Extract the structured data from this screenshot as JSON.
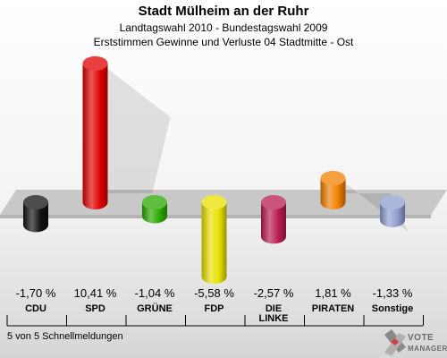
{
  "header": {
    "title": "Stadt Mülheim an der Ruhr",
    "subtitle": "Landtagswahl 2010 - Bundestagswahl 2009",
    "subtitle2": "Erststimmen Gewinne und Verluste 04 Stadtmitte - Ost"
  },
  "chart_data": {
    "type": "bar",
    "title": "Stadt Mülheim an der Ruhr",
    "subtitle": "Landtagswahl 2010 - Bundestagswahl 2009 / Erststimmen Gewinne und Verluste 04 Stadtmitte - Ost",
    "categories": [
      "CDU",
      "SPD",
      "GRÜNE",
      "FDP",
      "DIE\nLINKE",
      "PIRATEN",
      "Sonstige"
    ],
    "values": [
      -1.7,
      10.41,
      -1.04,
      -5.58,
      -2.57,
      1.81,
      -1.33
    ],
    "value_labels": [
      "-1,70 %",
      "10,41 %",
      "-1,04 %",
      "-5,58 %",
      "-2,57 %",
      "1,81 %",
      "-1,33 %"
    ],
    "colors": [
      "#111111",
      "#e00000",
      "#2aa800",
      "#e8e000",
      "#b81c50",
      "#f08000",
      "#8f9fcf"
    ],
    "grid": false,
    "legend": "none"
  },
  "footer": {
    "note": "5 von 5 Schnellmeldungen"
  },
  "brand": {
    "line1": "VOTE",
    "line2": "MANAGER",
    "icon": "vote-manager-logo-icon"
  }
}
